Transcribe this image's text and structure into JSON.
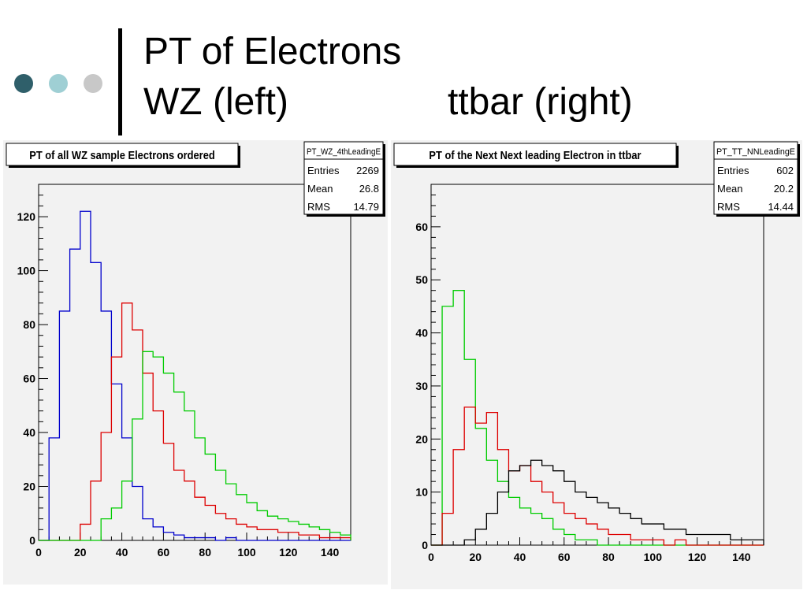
{
  "slide": {
    "title_line1": "PT of Electrons",
    "title_line2_left": "WZ (left)",
    "title_line2_right": "ttbar (right)",
    "dot_colors": [
      "#2f5f6a",
      "#9fcfd4",
      "#c8c8c8"
    ]
  },
  "chart_data": [
    {
      "type": "histogram",
      "title": "PT of all WZ sample Electrons ordered",
      "xlabel": "",
      "ylabel": "",
      "xlim": [
        0,
        150
      ],
      "ylim": [
        0,
        132
      ],
      "xticks": [
        0,
        20,
        40,
        60,
        80,
        100,
        120,
        140
      ],
      "yticks": [
        0,
        20,
        40,
        60,
        80,
        100,
        120
      ],
      "grid": false,
      "stats": {
        "name": "PT_WZ_4thLeadingE",
        "rows": [
          {
            "label": "Entries",
            "value": "2269"
          },
          {
            "label": "Mean",
            "value": "26.8"
          },
          {
            "label": "RMS",
            "value": "14.79"
          }
        ]
      },
      "series": [
        {
          "color": "#0000cc",
          "x": [
            0,
            5,
            10,
            15,
            20,
            25,
            30,
            35,
            40,
            45,
            50,
            55,
            60,
            65,
            70,
            75,
            80,
            85,
            90,
            95,
            100,
            105,
            110,
            115,
            120,
            125,
            130,
            135,
            140,
            145
          ],
          "values": [
            0,
            38,
            85,
            108,
            122,
            103,
            85,
            58,
            38,
            20,
            8,
            5,
            3,
            2,
            1,
            1,
            1,
            0,
            1,
            0,
            0,
            0,
            0,
            0,
            0,
            0,
            0,
            0,
            0,
            0
          ]
        },
        {
          "color": "#dd0000",
          "x": [
            0,
            5,
            10,
            15,
            20,
            25,
            30,
            35,
            40,
            45,
            50,
            55,
            60,
            65,
            70,
            75,
            80,
            85,
            90,
            95,
            100,
            105,
            110,
            115,
            120,
            125,
            130,
            135,
            140,
            145
          ],
          "values": [
            0,
            0,
            0,
            0,
            6,
            22,
            40,
            68,
            88,
            78,
            62,
            48,
            36,
            26,
            22,
            16,
            13,
            10,
            8,
            6,
            5,
            4,
            4,
            3,
            3,
            2,
            2,
            1,
            1,
            1
          ]
        },
        {
          "color": "#00cc00",
          "x": [
            0,
            5,
            10,
            15,
            20,
            25,
            30,
            35,
            40,
            45,
            50,
            55,
            60,
            65,
            70,
            75,
            80,
            85,
            90,
            95,
            100,
            105,
            110,
            115,
            120,
            125,
            130,
            135,
            140,
            145
          ],
          "values": [
            0,
            0,
            0,
            0,
            0,
            0,
            8,
            12,
            22,
            45,
            70,
            68,
            62,
            55,
            48,
            38,
            32,
            26,
            21,
            17,
            14,
            11,
            9,
            8,
            7,
            6,
            5,
            4,
            3,
            2
          ]
        }
      ]
    },
    {
      "type": "histogram",
      "title": "PT of the Next Next leading Electron in ttbar",
      "xlabel": "",
      "ylabel": "",
      "xlim": [
        0,
        150
      ],
      "ylim": [
        0,
        68
      ],
      "xticks": [
        0,
        20,
        40,
        60,
        80,
        100,
        120,
        140
      ],
      "yticks": [
        0,
        10,
        20,
        30,
        40,
        50,
        60
      ],
      "grid": false,
      "stats": {
        "name": "PT_TT_NNLeadingE",
        "rows": [
          {
            "label": "Entries",
            "value": "602"
          },
          {
            "label": "Mean",
            "value": "20.2"
          },
          {
            "label": "RMS",
            "value": "14.44"
          }
        ]
      },
      "series": [
        {
          "color": "#00cc00",
          "x": [
            0,
            5,
            10,
            15,
            20,
            25,
            30,
            35,
            40,
            45,
            50,
            55,
            60,
            65,
            70,
            75,
            80,
            85,
            90,
            95,
            100,
            105,
            110,
            115,
            120,
            125,
            130,
            135,
            140,
            145
          ],
          "values": [
            0,
            45,
            48,
            35,
            22,
            16,
            12,
            9,
            7,
            6,
            5,
            3,
            2,
            1,
            1,
            0,
            0,
            0,
            0,
            0,
            0,
            0,
            0,
            0,
            0,
            0,
            0,
            0,
            0,
            0
          ]
        },
        {
          "color": "#dd0000",
          "x": [
            0,
            5,
            10,
            15,
            20,
            25,
            30,
            35,
            40,
            45,
            50,
            55,
            60,
            65,
            70,
            75,
            80,
            85,
            90,
            95,
            100,
            105,
            110,
            115,
            120,
            125,
            130,
            135,
            140,
            145
          ],
          "values": [
            0,
            6,
            18,
            26,
            23,
            25,
            18,
            14,
            15,
            12,
            10,
            8,
            6,
            5,
            4,
            3,
            2,
            2,
            1,
            1,
            1,
            0,
            1,
            0,
            0,
            0,
            0,
            0,
            0,
            0
          ]
        },
        {
          "color": "#000000",
          "x": [
            0,
            5,
            10,
            15,
            20,
            25,
            30,
            35,
            40,
            45,
            50,
            55,
            60,
            65,
            70,
            75,
            80,
            85,
            90,
            95,
            100,
            105,
            110,
            115,
            120,
            125,
            130,
            135,
            140,
            145
          ],
          "values": [
            0,
            0,
            0,
            1,
            3,
            6,
            10,
            14,
            15,
            16,
            15,
            14,
            12,
            10,
            9,
            8,
            7,
            6,
            5,
            4,
            4,
            3,
            3,
            2,
            2,
            2,
            2,
            1,
            1,
            1
          ]
        }
      ]
    }
  ]
}
